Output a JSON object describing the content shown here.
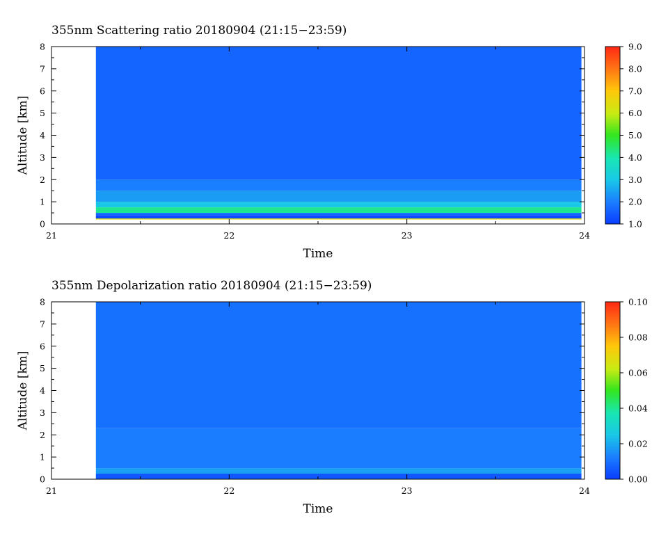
{
  "chart_data": [
    {
      "type": "heatmap",
      "title": "355nm Scattering ratio  20180904 (21:15−23:59)",
      "xlabel": "Time",
      "ylabel": "Altitude [km]",
      "xlim": [
        21,
        24
      ],
      "ylim": [
        0,
        8
      ],
      "x_ticks": [
        "21",
        "22",
        "23",
        "24"
      ],
      "y_ticks": [
        "0",
        "1",
        "2",
        "3",
        "4",
        "5",
        "6",
        "7",
        "8"
      ],
      "data_time_range": [
        21.25,
        23.983
      ],
      "colorbar": {
        "range": [
          1.0,
          9.0
        ],
        "ticks": [
          "1.0",
          "2.0",
          "3.0",
          "4.0",
          "5.0",
          "6.0",
          "7.0",
          "8.0",
          "9.0"
        ]
      },
      "layers": [
        {
          "alt_min": 0.2,
          "alt_max": 0.25,
          "value": 6.3
        },
        {
          "alt_min": 0.25,
          "alt_max": 0.4,
          "value": 1.2
        },
        {
          "alt_min": 0.4,
          "alt_max": 0.5,
          "value": 1.6
        },
        {
          "alt_min": 0.5,
          "alt_max": 0.75,
          "value": 4.2
        },
        {
          "alt_min": 0.75,
          "alt_max": 1.0,
          "value": 3.0
        },
        {
          "alt_min": 1.0,
          "alt_max": 1.5,
          "value": 2.4
        },
        {
          "alt_min": 1.5,
          "alt_max": 2.0,
          "value": 2.0
        },
        {
          "alt_min": 2.0,
          "alt_max": 8.0,
          "value": 1.6
        }
      ]
    },
    {
      "type": "heatmap",
      "title": "355nm Depolarization ratio  20180904 (21:15−23:59)",
      "xlabel": "Time",
      "ylabel": "Altitude [km]",
      "xlim": [
        21,
        24
      ],
      "ylim": [
        0,
        8
      ],
      "x_ticks": [
        "21",
        "22",
        "23",
        "24"
      ],
      "y_ticks": [
        "0",
        "1",
        "2",
        "3",
        "4",
        "5",
        "6",
        "7",
        "8"
      ],
      "data_time_range": [
        21.25,
        23.983
      ],
      "colorbar": {
        "range": [
          0.0,
          0.1
        ],
        "ticks": [
          "0.00",
          "0.02",
          "0.04",
          "0.06",
          "0.08",
          "0.10"
        ]
      },
      "layers": [
        {
          "alt_min": 0.0,
          "alt_max": 0.25,
          "value": 0.005
        },
        {
          "alt_min": 0.25,
          "alt_max": 0.5,
          "value": 0.018
        },
        {
          "alt_min": 0.5,
          "alt_max": 2.3,
          "value": 0.012
        },
        {
          "alt_min": 2.3,
          "alt_max": 8.0,
          "value": 0.01
        }
      ]
    }
  ]
}
